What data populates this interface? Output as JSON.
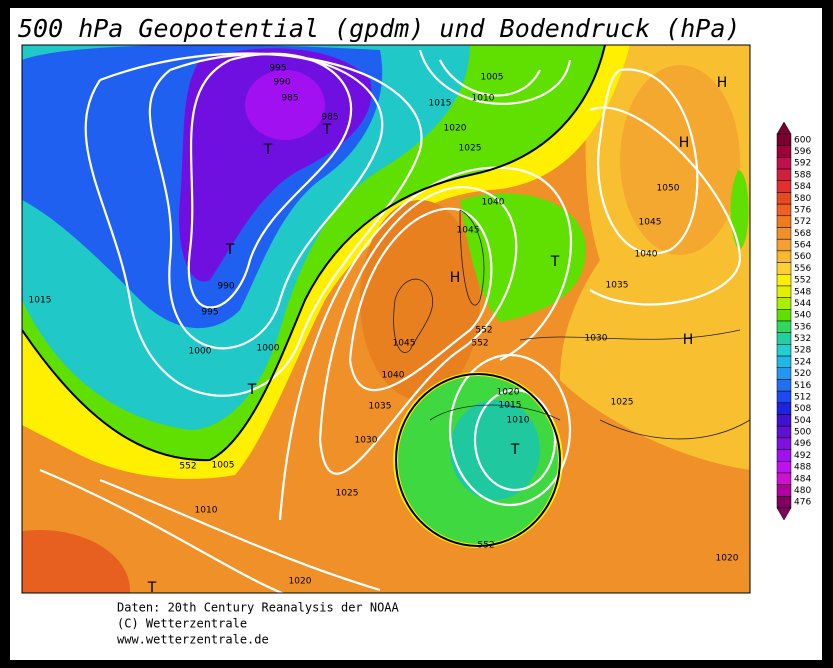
{
  "title": "500 hPa Geopotential (gpdm) und Bodendruck (hPa)",
  "colorbar": {
    "levels": [
      600,
      596,
      592,
      588,
      584,
      580,
      576,
      572,
      568,
      564,
      560,
      556,
      552,
      548,
      544,
      540,
      536,
      532,
      528,
      524,
      520,
      516,
      512,
      508,
      504,
      500,
      496,
      492,
      488,
      484,
      480,
      476
    ],
    "colors": [
      "#7a0030",
      "#a0003a",
      "#c0104a",
      "#d02040",
      "#e03030",
      "#e84a20",
      "#f06020",
      "#f07a20",
      "#f09028",
      "#f5a030",
      "#f8b830",
      "#fcd030",
      "#fff000",
      "#e0f000",
      "#a8f000",
      "#60e000",
      "#30d860",
      "#20d0a0",
      "#20d0d0",
      "#20b8e8",
      "#2098f0",
      "#2070f0",
      "#2048f0",
      "#2020e0",
      "#4010d0",
      "#6010d0",
      "#8010e0",
      "#a010f0",
      "#c010f0",
      "#d010d0",
      "#b000a0",
      "#800060"
    ]
  },
  "map_labels": [
    "H",
    "H",
    "H",
    "H",
    "T",
    "T",
    "T",
    "T",
    "T",
    "T",
    "T",
    "995",
    "990",
    "985",
    "985",
    "1005",
    "1010",
    "1015",
    "1020",
    "1025",
    "1050",
    "1045",
    "1040",
    "1035",
    "1030",
    "1025",
    "1040",
    "1045",
    "1045",
    "1040",
    "1035",
    "1030",
    "1025",
    "1020",
    "1015",
    "1010",
    "1005",
    "1010",
    "1020",
    "1020",
    "1015",
    "1000",
    "1000",
    "990",
    "995",
    "552",
    "552",
    "552",
    "552"
  ],
  "credits": [
    "Daten: 20th Century Reanalysis der NOAA",
    "(C) Wetterzentrale",
    "www.wetterzentrale.de"
  ]
}
